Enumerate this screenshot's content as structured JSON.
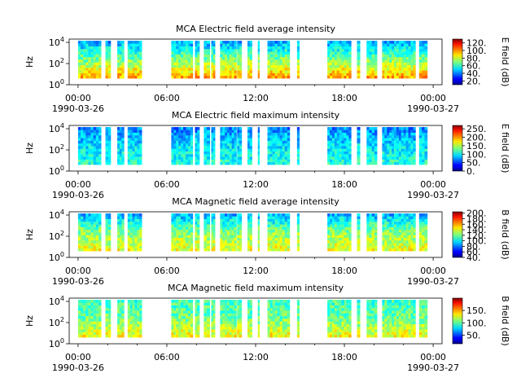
{
  "chart_data": [
    {
      "type": "heatmap",
      "title": "MCA  Electric field average intensity",
      "ylabel": "Hz",
      "y_scale": "log",
      "y_ticks": [
        1,
        100,
        10000
      ],
      "y_tick_labels": [
        "10^0",
        "10^2",
        "10^4"
      ],
      "x_ticks": [
        "00:00",
        "06:00",
        "12:00",
        "18:00",
        "00:00"
      ],
      "x_tick_dates": [
        "1990-03-26",
        "",
        "",
        "",
        "1990-03-27"
      ],
      "xlim_hours": [
        -0.6,
        24.6
      ],
      "colorbar": {
        "label": "E field (dB)",
        "range": [
          10,
          130
        ],
        "ticks": [
          20,
          40,
          60,
          80,
          100,
          120
        ],
        "tick_labels": [
          "20.",
          "40.",
          "60.",
          "80.",
          "100.",
          "120."
        ]
      },
      "colormap": "jet",
      "data_intervals_hours": [
        [
          0.0,
          1.55
        ],
        [
          1.85,
          2.2
        ],
        [
          2.65,
          3.1
        ],
        [
          3.35,
          4.3
        ],
        [
          6.3,
          7.75
        ],
        [
          7.9,
          8.2
        ],
        [
          8.5,
          8.9
        ],
        [
          9.0,
          9.25
        ],
        [
          9.6,
          10.7
        ],
        [
          10.75,
          11.05
        ],
        [
          11.45,
          11.75
        ],
        [
          12.15,
          12.25
        ],
        [
          12.8,
          14.3
        ],
        [
          14.8,
          14.95
        ],
        [
          16.85,
          18.45
        ],
        [
          18.85,
          19.05
        ],
        [
          19.5,
          20.2
        ],
        [
          20.55,
          22.8
        ],
        [
          23.05,
          23.6
        ]
      ],
      "spectrum_profile_db": {
        "low_freq": 95,
        "mid_freq": 70,
        "high_freq": 45
      }
    },
    {
      "type": "heatmap",
      "title": "MCA  Electric field maximum intensity",
      "ylabel": "Hz",
      "y_scale": "log",
      "y_ticks": [
        1,
        100,
        10000
      ],
      "y_tick_labels": [
        "10^0",
        "10^2",
        "10^4"
      ],
      "x_ticks": [
        "00:00",
        "06:00",
        "12:00",
        "18:00",
        "00:00"
      ],
      "x_tick_dates": [
        "1990-03-26",
        "",
        "",
        "",
        "1990-03-27"
      ],
      "xlim_hours": [
        -0.6,
        24.6
      ],
      "colorbar": {
        "label": "E field (dB)",
        "range": [
          0,
          270
        ],
        "ticks": [
          0,
          50,
          100,
          150,
          200,
          250
        ],
        "tick_labels": [
          "0.",
          "50.",
          "100.",
          "150.",
          "200.",
          "250."
        ]
      },
      "colormap": "jet",
      "data_intervals_hours": [
        [
          0.0,
          1.55
        ],
        [
          1.85,
          2.2
        ],
        [
          2.65,
          3.1
        ],
        [
          3.35,
          4.3
        ],
        [
          6.3,
          7.75
        ],
        [
          7.9,
          8.2
        ],
        [
          8.5,
          8.9
        ],
        [
          9.0,
          9.25
        ],
        [
          9.6,
          10.7
        ],
        [
          10.75,
          11.05
        ],
        [
          11.45,
          11.75
        ],
        [
          12.15,
          12.25
        ],
        [
          12.8,
          14.3
        ],
        [
          14.8,
          14.95
        ],
        [
          16.85,
          18.45
        ],
        [
          18.85,
          19.05
        ],
        [
          19.5,
          20.2
        ],
        [
          20.55,
          22.8
        ],
        [
          23.05,
          23.6
        ]
      ],
      "spectrum_profile_db": {
        "low_freq": 110,
        "mid_freq": 95,
        "high_freq": 70
      }
    },
    {
      "type": "heatmap",
      "title": "MCA  Magnetic field average intensity",
      "ylabel": "Hz",
      "y_scale": "log",
      "y_ticks": [
        1,
        100,
        10000
      ],
      "y_tick_labels": [
        "10^0",
        "10^2",
        "10^4"
      ],
      "x_ticks": [
        "00:00",
        "06:00",
        "12:00",
        "18:00",
        "00:00"
      ],
      "x_tick_dates": [
        "1990-03-26",
        "",
        "",
        "",
        "1990-03-27"
      ],
      "xlim_hours": [
        -0.6,
        24.6
      ],
      "colorbar": {
        "label": "B field (dB)",
        "range": [
          40,
          205
        ],
        "ticks": [
          40,
          60,
          80,
          100,
          120,
          140,
          160,
          180,
          200
        ],
        "tick_labels": [
          "40.",
          "60.",
          "80.",
          "100.",
          "120.",
          "140.",
          "160.",
          "180.",
          "200."
        ]
      },
      "colormap": "jet",
      "data_intervals_hours": [
        [
          0.0,
          1.55
        ],
        [
          1.85,
          2.2
        ],
        [
          2.65,
          3.1
        ],
        [
          3.35,
          4.3
        ],
        [
          6.3,
          7.75
        ],
        [
          7.9,
          8.2
        ],
        [
          8.5,
          8.9
        ],
        [
          9.0,
          9.25
        ],
        [
          9.6,
          10.7
        ],
        [
          10.75,
          11.05
        ],
        [
          11.45,
          11.75
        ],
        [
          12.15,
          12.25
        ],
        [
          12.8,
          14.3
        ],
        [
          14.8,
          14.95
        ],
        [
          16.85,
          18.45
        ],
        [
          18.85,
          19.05
        ],
        [
          19.5,
          20.2
        ],
        [
          20.55,
          22.8
        ],
        [
          23.05,
          23.6
        ]
      ],
      "spectrum_profile_db": {
        "low_freq": 140,
        "mid_freq": 125,
        "high_freq": 90
      }
    },
    {
      "type": "heatmap",
      "title": "MCA  Magnetic field maximum intensity",
      "ylabel": "Hz",
      "y_scale": "log",
      "y_ticks": [
        1,
        100,
        10000
      ],
      "y_tick_labels": [
        "10^0",
        "10^2",
        "10^4"
      ],
      "x_ticks": [
        "00:00",
        "06:00",
        "12:00",
        "18:00",
        "00:00"
      ],
      "x_tick_dates": [
        "1990-03-26",
        "",
        "",
        "",
        "1990-03-27"
      ],
      "xlim_hours": [
        -0.6,
        24.6
      ],
      "colorbar": {
        "label": "B field (dB)",
        "range": [
          15,
          200
        ],
        "ticks": [
          50,
          100,
          150
        ],
        "tick_labels": [
          "50.",
          "100.",
          "150."
        ]
      },
      "colormap": "jet",
      "data_intervals_hours": [
        [
          0.0,
          1.55
        ],
        [
          1.85,
          2.2
        ],
        [
          2.65,
          3.1
        ],
        [
          3.35,
          4.3
        ],
        [
          6.3,
          7.75
        ],
        [
          7.9,
          8.2
        ],
        [
          8.5,
          8.9
        ],
        [
          9.0,
          9.25
        ],
        [
          9.6,
          10.7
        ],
        [
          10.75,
          11.05
        ],
        [
          11.45,
          11.75
        ],
        [
          12.15,
          12.25
        ],
        [
          12.8,
          14.3
        ],
        [
          14.8,
          14.95
        ],
        [
          16.85,
          18.45
        ],
        [
          18.85,
          19.05
        ],
        [
          19.5,
          20.2
        ],
        [
          20.55,
          22.8
        ],
        [
          23.05,
          23.6
        ]
      ],
      "spectrum_profile_db": {
        "low_freq": 130,
        "mid_freq": 105,
        "high_freq": 95
      }
    }
  ]
}
